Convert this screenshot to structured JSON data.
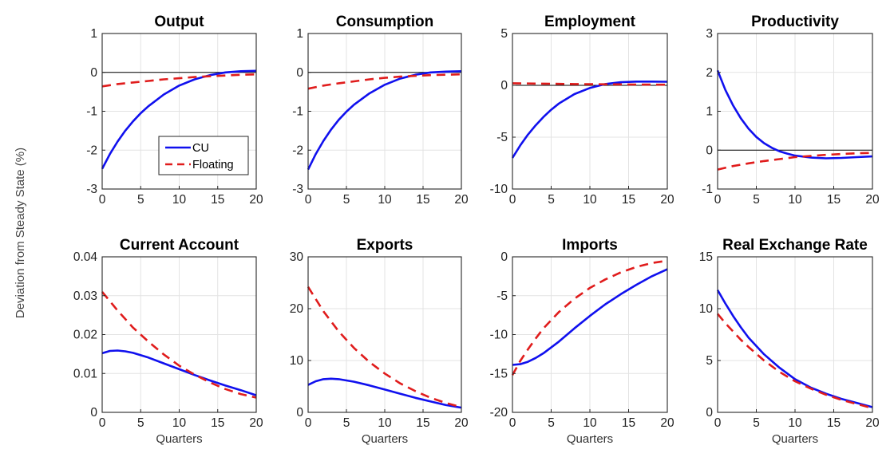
{
  "figure": {
    "ylabel": "Deviation from Steady State (%)",
    "legend": {
      "position": "inside-bottom-right of Output panel"
    }
  },
  "colors": {
    "CU": "#1010ee",
    "Floating": "#e01c1c",
    "grid": "#e3e3e3",
    "zero_line": "#000000"
  },
  "chart_data": [
    {
      "type": "line",
      "title": "Output",
      "xlabel": "",
      "xlim": [
        0,
        20
      ],
      "ylim": [
        -3,
        1
      ],
      "xticks": [
        0,
        5,
        10,
        15,
        20
      ],
      "yticks": [
        -3,
        -2,
        -1,
        0,
        1
      ],
      "grid": true,
      "zero_line": true,
      "legend": [
        "CU",
        "Floating"
      ],
      "series": [
        {
          "name": "CU",
          "style": "solid",
          "x": [
            0,
            1,
            2,
            3,
            4,
            5,
            6,
            8,
            10,
            12,
            14,
            16,
            18,
            20
          ],
          "y": [
            -2.48,
            -2.1,
            -1.78,
            -1.5,
            -1.26,
            -1.05,
            -0.87,
            -0.57,
            -0.34,
            -0.18,
            -0.07,
            0.0,
            0.03,
            0.04
          ]
        },
        {
          "name": "Floating",
          "style": "dashed",
          "x": [
            0,
            2,
            4,
            6,
            8,
            10,
            12,
            14,
            16,
            18,
            20
          ],
          "y": [
            -0.36,
            -0.3,
            -0.26,
            -0.22,
            -0.18,
            -0.15,
            -0.12,
            -0.1,
            -0.08,
            -0.06,
            -0.05
          ]
        }
      ]
    },
    {
      "type": "line",
      "title": "Consumption",
      "xlabel": "",
      "xlim": [
        0,
        20
      ],
      "ylim": [
        -3,
        1
      ],
      "xticks": [
        0,
        5,
        10,
        15,
        20
      ],
      "yticks": [
        -3,
        -2,
        -1,
        0,
        1
      ],
      "grid": true,
      "zero_line": true,
      "series": [
        {
          "name": "CU",
          "style": "solid",
          "x": [
            0,
            1,
            2,
            3,
            4,
            5,
            6,
            8,
            10,
            12,
            14,
            16,
            18,
            20
          ],
          "y": [
            -2.5,
            -2.1,
            -1.76,
            -1.47,
            -1.22,
            -1.01,
            -0.83,
            -0.54,
            -0.32,
            -0.16,
            -0.06,
            0.0,
            0.02,
            0.03
          ]
        },
        {
          "name": "Floating",
          "style": "dashed",
          "x": [
            0,
            2,
            4,
            6,
            8,
            10,
            12,
            14,
            16,
            18,
            20
          ],
          "y": [
            -0.42,
            -0.34,
            -0.28,
            -0.23,
            -0.18,
            -0.14,
            -0.11,
            -0.09,
            -0.07,
            -0.06,
            -0.05
          ]
        }
      ]
    },
    {
      "type": "line",
      "title": "Employment",
      "xlabel": "",
      "xlim": [
        0,
        20
      ],
      "ylim": [
        -10,
        5
      ],
      "xticks": [
        0,
        5,
        10,
        15,
        20
      ],
      "yticks": [
        -10,
        -5,
        0,
        5
      ],
      "grid": true,
      "zero_line": true,
      "series": [
        {
          "name": "CU",
          "style": "solid",
          "x": [
            0,
            1,
            2,
            3,
            4,
            5,
            6,
            8,
            10,
            12,
            14,
            16,
            18,
            20
          ],
          "y": [
            -7.0,
            -5.8,
            -4.75,
            -3.85,
            -3.05,
            -2.35,
            -1.75,
            -0.85,
            -0.25,
            0.12,
            0.3,
            0.36,
            0.36,
            0.35
          ]
        },
        {
          "name": "Floating",
          "style": "dashed",
          "x": [
            0,
            4,
            8,
            12,
            16,
            20
          ],
          "y": [
            0.2,
            0.16,
            0.12,
            0.1,
            0.08,
            0.06
          ]
        }
      ]
    },
    {
      "type": "line",
      "title": "Productivity",
      "xlabel": "",
      "xlim": [
        0,
        20
      ],
      "ylim": [
        -1,
        3
      ],
      "xticks": [
        0,
        5,
        10,
        15,
        20
      ],
      "yticks": [
        -1,
        0,
        1,
        2,
        3
      ],
      "grid": true,
      "zero_line": true,
      "series": [
        {
          "name": "CU",
          "style": "solid",
          "x": [
            0,
            1,
            2,
            3,
            4,
            5,
            6,
            7,
            8,
            9,
            10,
            12,
            14,
            16,
            18,
            20
          ],
          "y": [
            2.05,
            1.55,
            1.15,
            0.82,
            0.55,
            0.34,
            0.18,
            0.06,
            -0.03,
            -0.09,
            -0.14,
            -0.19,
            -0.21,
            -0.2,
            -0.18,
            -0.16
          ]
        },
        {
          "name": "Floating",
          "style": "dashed",
          "x": [
            0,
            2,
            4,
            6,
            8,
            10,
            12,
            14,
            16,
            18,
            20
          ],
          "y": [
            -0.5,
            -0.41,
            -0.34,
            -0.28,
            -0.23,
            -0.18,
            -0.15,
            -0.12,
            -0.1,
            -0.08,
            -0.07
          ]
        }
      ]
    },
    {
      "type": "line",
      "title": "Current Account",
      "xlabel": "Quarters",
      "xlim": [
        0,
        20
      ],
      "ylim": [
        0,
        0.04
      ],
      "xticks": [
        0,
        5,
        10,
        15,
        20
      ],
      "yticks": [
        0,
        0.01,
        0.02,
        0.03,
        0.04
      ],
      "ytick_labels": [
        "0",
        "0.01",
        "0.02",
        "0.03",
        "0.04"
      ],
      "grid": true,
      "zero_line": false,
      "series": [
        {
          "name": "CU",
          "style": "solid",
          "x": [
            0,
            1,
            2,
            3,
            4,
            6,
            8,
            10,
            12,
            14,
            16,
            18,
            20
          ],
          "y": [
            0.0152,
            0.0158,
            0.0159,
            0.0157,
            0.0153,
            0.0141,
            0.0126,
            0.0111,
            0.0096,
            0.0082,
            0.0069,
            0.0057,
            0.0044
          ]
        },
        {
          "name": "Floating",
          "style": "dashed",
          "x": [
            0,
            2,
            4,
            6,
            8,
            10,
            12,
            14,
            16,
            18,
            20
          ],
          "y": [
            0.031,
            0.0262,
            0.0218,
            0.0182,
            0.0149,
            0.012,
            0.0097,
            0.0077,
            0.006,
            0.0047,
            0.0038
          ]
        }
      ]
    },
    {
      "type": "line",
      "title": "Exports",
      "xlabel": "Quarters",
      "xlim": [
        0,
        20
      ],
      "ylim": [
        0,
        30
      ],
      "xticks": [
        0,
        5,
        10,
        15,
        20
      ],
      "yticks": [
        0,
        10,
        20,
        30
      ],
      "grid": true,
      "zero_line": false,
      "series": [
        {
          "name": "CU",
          "style": "solid",
          "x": [
            0,
            1,
            2,
            3,
            4,
            6,
            8,
            10,
            12,
            14,
            16,
            18,
            20
          ],
          "y": [
            5.3,
            6.0,
            6.4,
            6.5,
            6.4,
            5.9,
            5.2,
            4.4,
            3.6,
            2.8,
            2.1,
            1.4,
            0.9
          ]
        },
        {
          "name": "Floating",
          "style": "dashed",
          "x": [
            0,
            2,
            4,
            6,
            8,
            10,
            12,
            14,
            16,
            18,
            20
          ],
          "y": [
            24.2,
            19.5,
            15.6,
            12.4,
            9.7,
            7.5,
            5.6,
            4.1,
            2.8,
            1.8,
            1.0
          ]
        }
      ]
    },
    {
      "type": "line",
      "title": "Imports",
      "xlabel": "Quarters",
      "xlim": [
        0,
        20
      ],
      "ylim": [
        -20,
        0
      ],
      "xticks": [
        0,
        5,
        10,
        15,
        20
      ],
      "yticks": [
        -20,
        -15,
        -10,
        -5,
        0
      ],
      "grid": true,
      "zero_line": true,
      "series": [
        {
          "name": "CU",
          "style": "solid",
          "x": [
            0,
            1,
            2,
            3,
            4,
            6,
            8,
            10,
            12,
            14,
            16,
            18,
            20
          ],
          "y": [
            -13.9,
            -13.8,
            -13.5,
            -13.0,
            -12.4,
            -10.9,
            -9.2,
            -7.6,
            -6.1,
            -4.8,
            -3.6,
            -2.5,
            -1.6
          ]
        },
        {
          "name": "Floating",
          "style": "dashed",
          "x": [
            0,
            1,
            2,
            3,
            4,
            6,
            8,
            10,
            12,
            14,
            16,
            18,
            20
          ],
          "y": [
            -15.2,
            -13.4,
            -11.9,
            -10.5,
            -9.2,
            -7.1,
            -5.4,
            -4.0,
            -2.9,
            -2.0,
            -1.3,
            -0.8,
            -0.5
          ]
        }
      ]
    },
    {
      "type": "line",
      "title": "Real Exchange Rate",
      "xlabel": "Quarters",
      "xlim": [
        0,
        20
      ],
      "ylim": [
        0,
        15
      ],
      "xticks": [
        0,
        5,
        10,
        15,
        20
      ],
      "yticks": [
        0,
        5,
        10,
        15
      ],
      "grid": true,
      "zero_line": false,
      "series": [
        {
          "name": "CU",
          "style": "solid",
          "x": [
            0,
            1,
            2,
            3,
            4,
            6,
            8,
            10,
            12,
            14,
            16,
            18,
            20
          ],
          "y": [
            11.8,
            10.5,
            9.3,
            8.2,
            7.2,
            5.6,
            4.3,
            3.2,
            2.4,
            1.8,
            1.3,
            0.9,
            0.5
          ]
        },
        {
          "name": "Floating",
          "style": "dashed",
          "x": [
            0,
            1,
            2,
            3,
            4,
            6,
            8,
            10,
            12,
            14,
            16,
            18,
            20
          ],
          "y": [
            9.5,
            8.6,
            7.8,
            7.0,
            6.3,
            5.0,
            3.9,
            3.0,
            2.3,
            1.7,
            1.2,
            0.8,
            0.4
          ]
        }
      ]
    }
  ]
}
